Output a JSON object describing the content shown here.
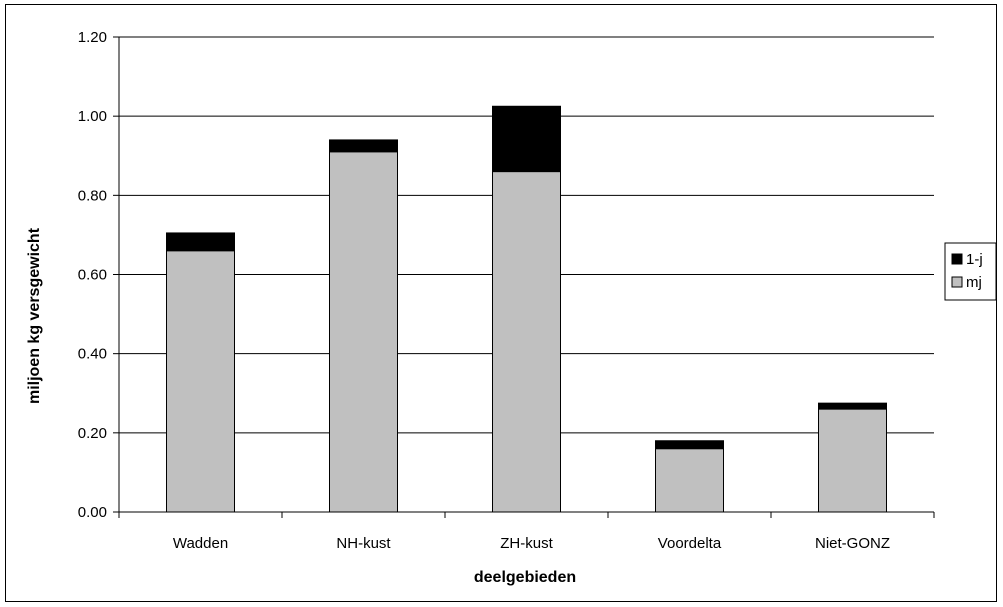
{
  "chart_data": {
    "type": "bar",
    "stacked": true,
    "categories": [
      "Wadden",
      "NH-kust",
      "ZH-kust",
      "Voordelta",
      "Niet-GONZ"
    ],
    "series": [
      {
        "name": "mj",
        "color": "#c0c0c0",
        "values": [
          0.66,
          0.91,
          0.86,
          0.16,
          0.26
        ]
      },
      {
        "name": "1-j",
        "color": "#000000",
        "values": [
          0.045,
          0.03,
          0.165,
          0.02,
          0.015
        ]
      }
    ],
    "title": "",
    "xlabel": "deelgebieden",
    "ylabel": "miljoen kg versgewicht",
    "ylim": [
      0,
      1.2
    ],
    "yticks": [
      0.0,
      0.2,
      0.4,
      0.6,
      0.8,
      1.0,
      1.2
    ],
    "ytick_labels": [
      "0.00",
      "0.20",
      "0.40",
      "0.60",
      "0.80",
      "1.00",
      "1.20"
    ],
    "grid": true,
    "legend_position": "right",
    "legend_order": [
      "1-j",
      "mj"
    ]
  }
}
